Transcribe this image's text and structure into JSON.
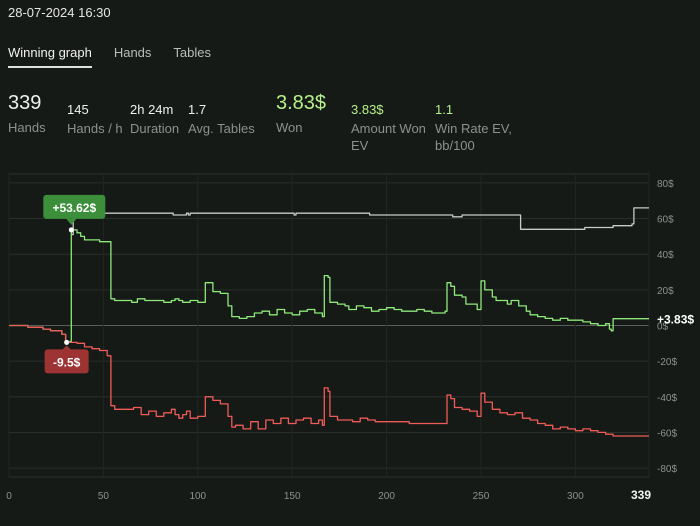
{
  "header": {
    "datetime": "28-07-2024 16:30"
  },
  "tabs": [
    {
      "label": "Winning graph",
      "active": true
    },
    {
      "label": "Hands",
      "active": false
    },
    {
      "label": "Tables",
      "active": false
    }
  ],
  "stats": {
    "hands": {
      "value": "339",
      "label": "Hands"
    },
    "hands_per_hour": {
      "value": "145",
      "label": "Hands / h"
    },
    "duration": {
      "value": "2h 24m",
      "label": "Duration"
    },
    "avg_tables": {
      "value": "1.7",
      "label": "Avg. Tables"
    },
    "won": {
      "value": "3.83$",
      "label": "Won"
    },
    "amount_won_ev": {
      "value": "3.83$",
      "label_line1": "Amount Won",
      "label_line2": "EV"
    },
    "win_rate_ev": {
      "value": "1.1",
      "label_line1": "Win Rate EV,",
      "label_line2": "bb/100"
    }
  },
  "colors": {
    "background": "#161a17",
    "grey_series": "#c9c9c9",
    "green_series": "#8ee87a",
    "red_series": "#ef5b57",
    "max_badge": "#3b8f3a",
    "min_badge": "#9d3433"
  },
  "chart_data": {
    "type": "line",
    "xlim": [
      0,
      339
    ],
    "ylim": [
      -85,
      85
    ],
    "x_ticks": [
      "0",
      "50",
      "100",
      "150",
      "200",
      "250",
      "300",
      "339"
    ],
    "y_ticks": [
      "80$",
      "60$",
      "40$",
      "20$",
      "0$",
      "-20$",
      "-40$",
      "-60$",
      "-80$"
    ],
    "grid": true,
    "annotations": {
      "max": {
        "label": "+53.62$",
        "x": 33,
        "y": 53.62
      },
      "min": {
        "label": "-9.5$",
        "x": 30,
        "y": -9.5
      },
      "end": {
        "label": "+3.83$",
        "x": 339,
        "y": 3.83
      }
    },
    "series": [
      {
        "color": "grey",
        "points": [
          [
            33,
            51
          ],
          [
            34,
            62
          ],
          [
            46,
            62
          ],
          [
            47,
            63
          ],
          [
            86,
            63
          ],
          [
            87,
            62
          ],
          [
            93,
            62
          ],
          [
            94,
            63
          ],
          [
            95,
            62
          ],
          [
            96,
            63
          ],
          [
            150,
            63
          ],
          [
            151,
            62
          ],
          [
            152,
            63
          ],
          [
            190,
            63
          ],
          [
            191,
            62
          ],
          [
            220,
            62
          ],
          [
            225,
            62
          ],
          [
            230,
            62
          ],
          [
            235,
            61
          ],
          [
            240,
            62
          ],
          [
            245,
            62
          ],
          [
            250,
            62
          ],
          [
            255,
            62
          ],
          [
            260,
            62
          ],
          [
            265,
            62
          ],
          [
            270,
            62
          ],
          [
            271,
            54
          ],
          [
            290,
            54
          ],
          [
            295,
            54
          ],
          [
            305,
            55
          ],
          [
            320,
            56
          ],
          [
            330,
            57
          ],
          [
            331,
            66
          ],
          [
            339,
            66
          ]
        ]
      },
      {
        "color": "green",
        "points": [
          [
            0,
            0
          ],
          [
            5,
            0
          ],
          [
            10,
            -1
          ],
          [
            15,
            -1
          ],
          [
            18,
            -2
          ],
          [
            22,
            -3
          ],
          [
            25,
            -3
          ],
          [
            28,
            -5
          ],
          [
            30,
            -9.5
          ],
          [
            32,
            -9
          ],
          [
            33,
            53.62
          ],
          [
            36,
            52
          ],
          [
            38,
            50
          ],
          [
            40,
            48
          ],
          [
            44,
            48
          ],
          [
            48,
            47
          ],
          [
            52,
            47
          ],
          [
            54,
            15
          ],
          [
            56,
            14
          ],
          [
            62,
            14
          ],
          [
            65,
            13
          ],
          [
            68,
            15
          ],
          [
            72,
            14
          ],
          [
            78,
            14
          ],
          [
            82,
            13
          ],
          [
            86,
            14
          ],
          [
            88,
            15
          ],
          [
            90,
            14
          ],
          [
            92,
            13
          ],
          [
            94,
            13
          ],
          [
            96,
            14
          ],
          [
            100,
            13
          ],
          [
            104,
            24
          ],
          [
            108,
            19
          ],
          [
            112,
            18
          ],
          [
            116,
            11
          ],
          [
            118,
            5
          ],
          [
            120,
            5
          ],
          [
            122,
            4
          ],
          [
            126,
            5
          ],
          [
            130,
            7
          ],
          [
            134,
            8
          ],
          [
            138,
            6
          ],
          [
            142,
            9
          ],
          [
            146,
            7
          ],
          [
            150,
            6
          ],
          [
            154,
            8
          ],
          [
            158,
            9
          ],
          [
            162,
            7
          ],
          [
            166,
            5
          ],
          [
            167,
            28
          ],
          [
            169,
            27
          ],
          [
            170,
            13
          ],
          [
            174,
            12
          ],
          [
            178,
            11
          ],
          [
            180,
            9
          ],
          [
            184,
            11
          ],
          [
            188,
            10
          ],
          [
            192,
            8
          ],
          [
            196,
            9
          ],
          [
            200,
            10
          ],
          [
            204,
            9
          ],
          [
            208,
            8
          ],
          [
            212,
            8
          ],
          [
            216,
            9
          ],
          [
            220,
            8
          ],
          [
            224,
            7
          ],
          [
            228,
            7
          ],
          [
            231,
            8
          ],
          [
            232,
            24
          ],
          [
            234,
            22
          ],
          [
            236,
            17
          ],
          [
            240,
            16
          ],
          [
            242,
            12
          ],
          [
            244,
            12
          ],
          [
            248,
            9
          ],
          [
            250,
            25
          ],
          [
            252,
            20
          ],
          [
            256,
            16
          ],
          [
            258,
            14
          ],
          [
            262,
            14
          ],
          [
            264,
            12
          ],
          [
            266,
            14
          ],
          [
            270,
            11
          ],
          [
            274,
            8
          ],
          [
            276,
            6
          ],
          [
            280,
            5
          ],
          [
            284,
            4
          ],
          [
            288,
            3
          ],
          [
            292,
            4
          ],
          [
            296,
            3
          ],
          [
            300,
            3
          ],
          [
            304,
            2
          ],
          [
            308,
            1
          ],
          [
            312,
            0
          ],
          [
            316,
            1
          ],
          [
            318,
            -2
          ],
          [
            319,
            -3
          ],
          [
            320,
            3.83
          ],
          [
            339,
            3.83
          ]
        ]
      },
      {
        "color": "red",
        "points": [
          [
            0,
            0
          ],
          [
            5,
            0
          ],
          [
            10,
            -1
          ],
          [
            15,
            -1
          ],
          [
            18,
            -2
          ],
          [
            22,
            -3
          ],
          [
            25,
            -3
          ],
          [
            28,
            -5
          ],
          [
            30,
            -9.5
          ],
          [
            33,
            -9.5
          ],
          [
            36,
            -10
          ],
          [
            40,
            -12
          ],
          [
            44,
            -13
          ],
          [
            48,
            -14
          ],
          [
            52,
            -17
          ],
          [
            54,
            -45
          ],
          [
            56,
            -47
          ],
          [
            62,
            -47
          ],
          [
            66,
            -46
          ],
          [
            70,
            -50
          ],
          [
            74,
            -48
          ],
          [
            78,
            -51
          ],
          [
            82,
            -49
          ],
          [
            86,
            -47
          ],
          [
            88,
            -50
          ],
          [
            90,
            -52
          ],
          [
            92,
            -50
          ],
          [
            94,
            -48
          ],
          [
            96,
            -52
          ],
          [
            100,
            -51
          ],
          [
            104,
            -40
          ],
          [
            108,
            -42
          ],
          [
            112,
            -44
          ],
          [
            116,
            -51
          ],
          [
            118,
            -57
          ],
          [
            120,
            -56
          ],
          [
            124,
            -58
          ],
          [
            128,
            -54
          ],
          [
            132,
            -58
          ],
          [
            136,
            -53
          ],
          [
            140,
            -55
          ],
          [
            144,
            -52
          ],
          [
            148,
            -55
          ],
          [
            152,
            -53
          ],
          [
            156,
            -52
          ],
          [
            160,
            -55
          ],
          [
            164,
            -53
          ],
          [
            166,
            -56
          ],
          [
            167,
            -35
          ],
          [
            169,
            -37
          ],
          [
            170,
            -51
          ],
          [
            174,
            -53
          ],
          [
            178,
            -53
          ],
          [
            182,
            -54
          ],
          [
            186,
            -52
          ],
          [
            190,
            -53
          ],
          [
            194,
            -54
          ],
          [
            200,
            -54
          ],
          [
            206,
            -54
          ],
          [
            212,
            -55
          ],
          [
            218,
            -55
          ],
          [
            224,
            -55
          ],
          [
            230,
            -55
          ],
          [
            231,
            -55
          ],
          [
            232,
            -39
          ],
          [
            234,
            -41
          ],
          [
            236,
            -46
          ],
          [
            240,
            -47
          ],
          [
            244,
            -48
          ],
          [
            248,
            -51
          ],
          [
            250,
            -38
          ],
          [
            252,
            -43
          ],
          [
            256,
            -47
          ],
          [
            260,
            -49
          ],
          [
            264,
            -50
          ],
          [
            268,
            -49
          ],
          [
            272,
            -52
          ],
          [
            276,
            -53
          ],
          [
            280,
            -55
          ],
          [
            284,
            -56
          ],
          [
            288,
            -58
          ],
          [
            292,
            -57
          ],
          [
            296,
            -58
          ],
          [
            300,
            -59
          ],
          [
            304,
            -58
          ],
          [
            308,
            -59
          ],
          [
            312,
            -60
          ],
          [
            316,
            -61
          ],
          [
            320,
            -62
          ],
          [
            330,
            -62
          ],
          [
            339,
            -62
          ]
        ]
      }
    ]
  }
}
